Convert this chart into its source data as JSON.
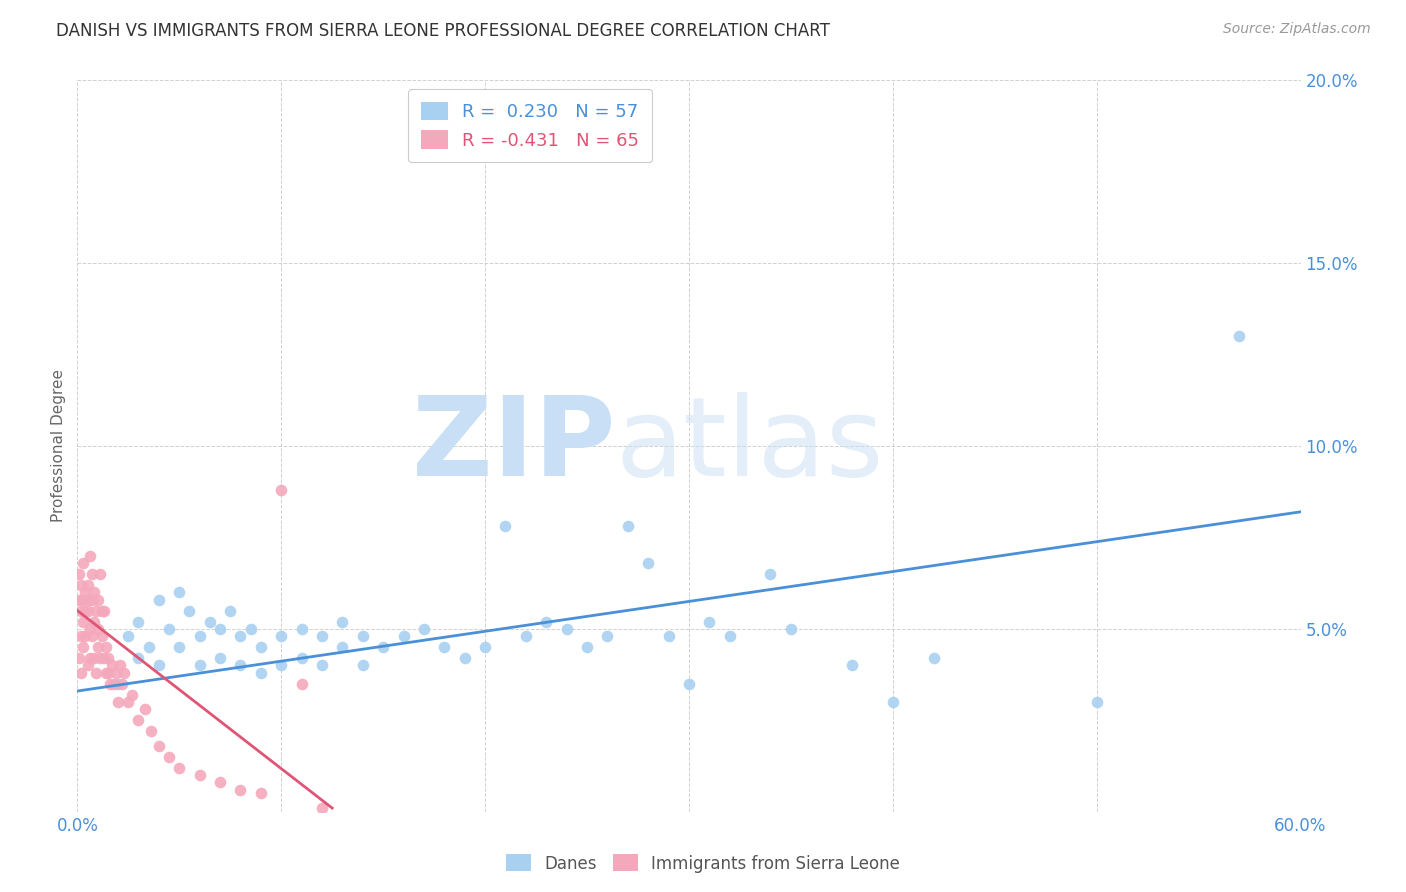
{
  "title": "DANISH VS IMMIGRANTS FROM SIERRA LEONE PROFESSIONAL DEGREE CORRELATION CHART",
  "source": "Source: ZipAtlas.com",
  "ylabel": "Professional Degree",
  "xlim": [
    0.0,
    0.6
  ],
  "ylim": [
    0.0,
    0.2
  ],
  "xticks": [
    0.0,
    0.1,
    0.2,
    0.3,
    0.4,
    0.5,
    0.6
  ],
  "yticks": [
    0.0,
    0.05,
    0.1,
    0.15,
    0.2
  ],
  "legend_r_blue": " 0.230",
  "legend_n_blue": "57",
  "legend_r_pink": "-0.431",
  "legend_n_pink": "65",
  "blue_color": "#a8d0f0",
  "pink_color": "#f4a8bc",
  "blue_line_color": "#4a90d9",
  "pink_line_color": "#e05575",
  "background_color": "#ffffff",
  "blue_scatter_x": [
    0.02,
    0.025,
    0.03,
    0.03,
    0.035,
    0.04,
    0.04,
    0.045,
    0.05,
    0.05,
    0.055,
    0.06,
    0.06,
    0.065,
    0.07,
    0.07,
    0.075,
    0.08,
    0.08,
    0.085,
    0.09,
    0.09,
    0.1,
    0.1,
    0.11,
    0.11,
    0.12,
    0.12,
    0.13,
    0.13,
    0.14,
    0.14,
    0.15,
    0.16,
    0.17,
    0.18,
    0.19,
    0.2,
    0.21,
    0.22,
    0.23,
    0.24,
    0.25,
    0.26,
    0.27,
    0.28,
    0.29,
    0.3,
    0.31,
    0.32,
    0.34,
    0.35,
    0.38,
    0.4,
    0.42,
    0.5,
    0.57
  ],
  "blue_scatter_y": [
    0.035,
    0.048,
    0.052,
    0.042,
    0.045,
    0.058,
    0.04,
    0.05,
    0.06,
    0.045,
    0.055,
    0.048,
    0.04,
    0.052,
    0.05,
    0.042,
    0.055,
    0.048,
    0.04,
    0.05,
    0.045,
    0.038,
    0.048,
    0.04,
    0.05,
    0.042,
    0.048,
    0.04,
    0.052,
    0.045,
    0.048,
    0.04,
    0.045,
    0.048,
    0.05,
    0.045,
    0.042,
    0.045,
    0.078,
    0.048,
    0.052,
    0.05,
    0.045,
    0.048,
    0.078,
    0.068,
    0.048,
    0.035,
    0.052,
    0.048,
    0.065,
    0.05,
    0.04,
    0.03,
    0.042,
    0.03,
    0.13
  ],
  "pink_scatter_x": [
    0.001,
    0.001,
    0.001,
    0.002,
    0.002,
    0.002,
    0.002,
    0.003,
    0.003,
    0.003,
    0.003,
    0.004,
    0.004,
    0.004,
    0.005,
    0.005,
    0.005,
    0.005,
    0.006,
    0.006,
    0.006,
    0.007,
    0.007,
    0.007,
    0.008,
    0.008,
    0.008,
    0.009,
    0.009,
    0.01,
    0.01,
    0.01,
    0.011,
    0.011,
    0.012,
    0.012,
    0.013,
    0.013,
    0.014,
    0.014,
    0.015,
    0.015,
    0.016,
    0.017,
    0.018,
    0.019,
    0.02,
    0.021,
    0.022,
    0.023,
    0.025,
    0.027,
    0.03,
    0.033,
    0.036,
    0.04,
    0.045,
    0.05,
    0.06,
    0.07,
    0.08,
    0.09,
    0.1,
    0.11,
    0.12
  ],
  "pink_scatter_y": [
    0.058,
    0.065,
    0.042,
    0.055,
    0.048,
    0.062,
    0.038,
    0.058,
    0.052,
    0.068,
    0.045,
    0.06,
    0.055,
    0.048,
    0.062,
    0.055,
    0.04,
    0.058,
    0.05,
    0.07,
    0.042,
    0.065,
    0.048,
    0.058,
    0.06,
    0.042,
    0.052,
    0.055,
    0.038,
    0.058,
    0.045,
    0.05,
    0.065,
    0.042,
    0.055,
    0.048,
    0.042,
    0.055,
    0.038,
    0.045,
    0.038,
    0.042,
    0.035,
    0.04,
    0.035,
    0.038,
    0.03,
    0.04,
    0.035,
    0.038,
    0.03,
    0.032,
    0.025,
    0.028,
    0.022,
    0.018,
    0.015,
    0.012,
    0.01,
    0.008,
    0.006,
    0.005,
    0.088,
    0.035,
    0.001
  ],
  "blue_trendline_x": [
    0.0,
    0.6
  ],
  "blue_trendline_y": [
    0.033,
    0.082
  ],
  "pink_trendline_x": [
    0.0,
    0.125
  ],
  "pink_trendline_y": [
    0.055,
    0.001
  ]
}
